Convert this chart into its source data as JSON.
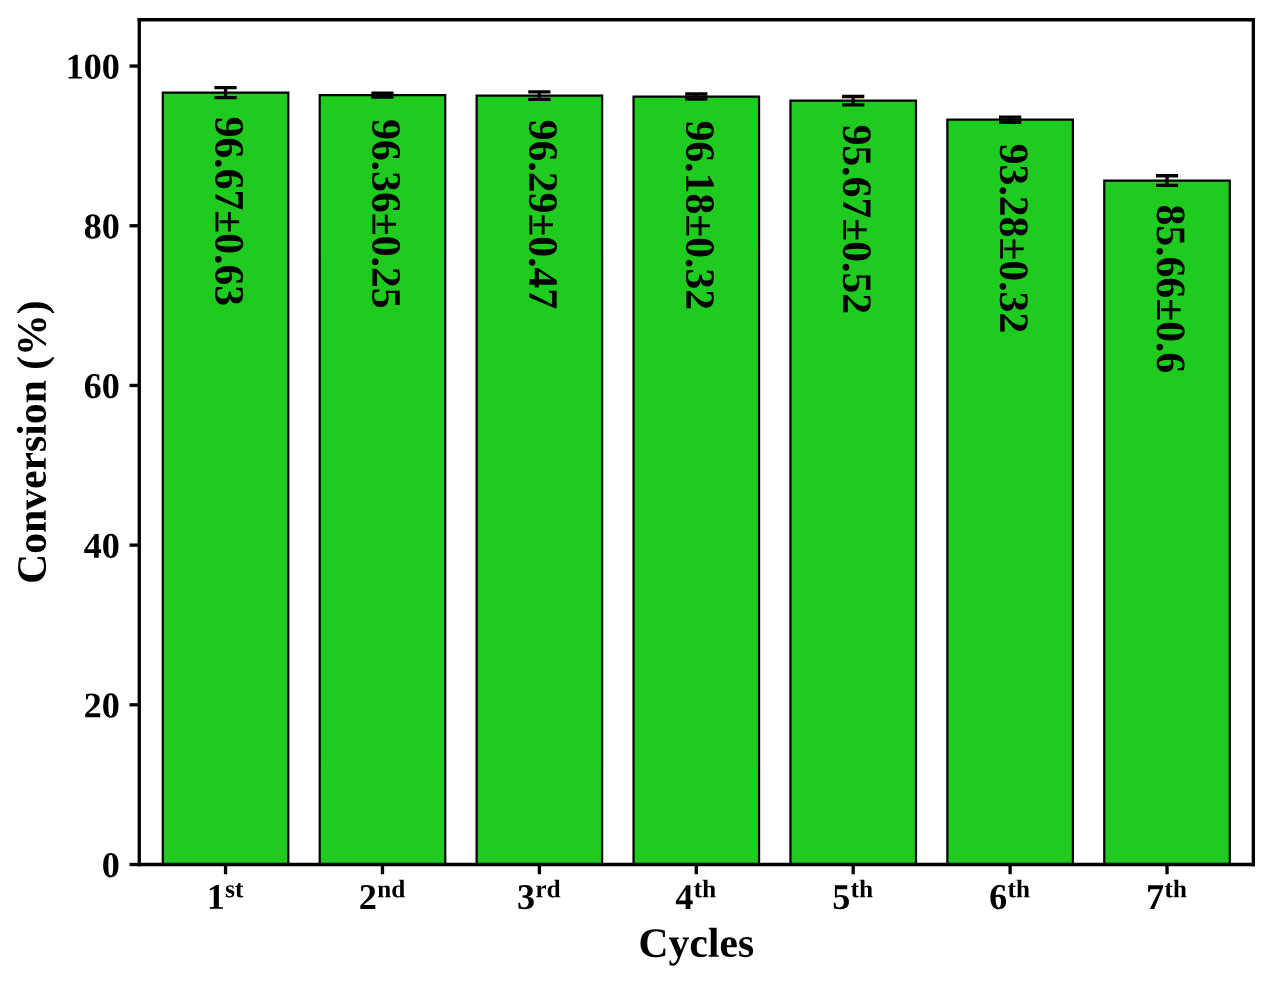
{
  "chart_data": {
    "type": "bar",
    "xlabel": "Cycles",
    "ylabel": "Conversion (%)",
    "categories": [
      "1$^{st}$",
      "2$^{nd}$",
      "3$^{rd}$",
      "4$^{th}$",
      "5$^{th}$",
      "6$^{th}$",
      "7$^{th}$"
    ],
    "values": [
      96.67,
      96.36,
      96.29,
      96.18,
      95.67,
      93.28,
      85.66
    ],
    "errors": [
      0.63,
      0.25,
      0.47,
      0.32,
      0.52,
      0.32,
      0.6
    ],
    "value_labels": [
      "96.67±0.63",
      "96.36±0.25",
      "96.29±0.47",
      "96.18±0.32",
      "95.67±0.52",
      "93.28±0.32",
      "85.66±0.6"
    ],
    "color": "#1ecb1e",
    "ylim": [
      0,
      105.8
    ],
    "yticks": [
      0,
      20,
      40,
      60,
      80,
      100
    ],
    "grid": false,
    "legend": false
  }
}
